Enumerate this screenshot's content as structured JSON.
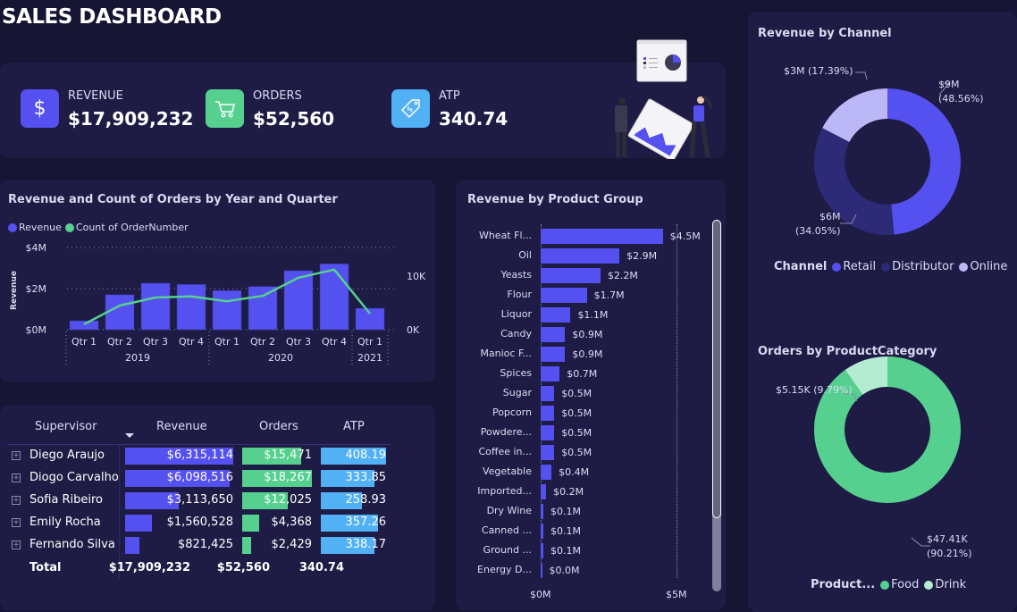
{
  "header": {
    "title": "SALES DASHBOARD"
  },
  "kpis": [
    {
      "label": "REVENUE",
      "value": "$17,909,232",
      "icon": "dollar-icon",
      "color": "#5550f0"
    },
    {
      "label": "ORDERS",
      "value": "$52,560",
      "icon": "cart-icon",
      "color": "#55d08f"
    },
    {
      "label": "ATP",
      "value": "340.74",
      "icon": "price-tag-icon",
      "color": "#52b0f5"
    }
  ],
  "colors": {
    "background": "#161533",
    "panel": "#1e1c45",
    "revenue": "#5550f0",
    "orders": "#55d08f",
    "atp": "#52b0f5",
    "distributor": "#2d2a78",
    "online": "#bcb8f7",
    "drink": "#b4ecd2"
  },
  "combo_chart": {
    "title": "Revenue and Count of Orders by Year and Quarter",
    "legend": [
      "Revenue",
      "Count of OrderNumber"
    ],
    "y_left_label": "Revenue",
    "y_left_ticks": [
      "$0M",
      "$2M",
      "$4M"
    ],
    "y_right_ticks": [
      "0K",
      "10K"
    ],
    "quarters": [
      "Qtr 1",
      "Qtr 2",
      "Qtr 3",
      "Qtr 4",
      "Qtr 1",
      "Qtr 2",
      "Qtr 3",
      "Qtr 4",
      "Qtr 1"
    ],
    "years": [
      {
        "label": "2019",
        "span": 4
      },
      {
        "label": "2020",
        "span": 4
      },
      {
        "label": "2021",
        "span": 1
      }
    ]
  },
  "table": {
    "headers": [
      "Supervisor",
      "Revenue",
      "Orders",
      "ATP"
    ],
    "rows": [
      {
        "name": "Diego Araujo",
        "revenue": "$6,315,114",
        "orders": "$15,471",
        "atp": "408.19",
        "revenue_v": 6315114,
        "orders_v": 15471,
        "atp_v": 408.19
      },
      {
        "name": "Diogo Carvalho",
        "revenue": "$6,098,516",
        "orders": "$18,267",
        "atp": "333.85",
        "revenue_v": 6098516,
        "orders_v": 18267,
        "atp_v": 333.85
      },
      {
        "name": "Sofia Ribeiro",
        "revenue": "$3,113,650",
        "orders": "$12,025",
        "atp": "258.93",
        "revenue_v": 3113650,
        "orders_v": 12025,
        "atp_v": 258.93
      },
      {
        "name": "Emily Rocha",
        "revenue": "$1,560,528",
        "orders": "$4,368",
        "atp": "357.26",
        "revenue_v": 1560528,
        "orders_v": 4368,
        "atp_v": 357.26
      },
      {
        "name": "Fernando Silva",
        "revenue": "$821,425",
        "orders": "$2,429",
        "atp": "338.17",
        "revenue_v": 821425,
        "orders_v": 2429,
        "atp_v": 338.17
      }
    ],
    "total": {
      "label": "Total",
      "revenue": "$17,909,232",
      "orders": "$52,560",
      "atp": "340.74"
    }
  },
  "product_group": {
    "title": "Revenue by Product Group",
    "x_ticks": [
      "$0M",
      "$5M"
    ]
  },
  "channel": {
    "title": "Revenue by Channel",
    "legend_title": "Channel",
    "labels": [
      {
        "line1": "$9M",
        "line2": "(48.56%)"
      },
      {
        "line1": "$6M",
        "line2": "(34.05%)"
      },
      {
        "line1": "$3M (17.39%)",
        "line2": ""
      }
    ]
  },
  "category": {
    "title": "Orders by ProductCategory",
    "legend_title": "Product...",
    "labels": [
      {
        "line1": "$47.41K",
        "line2": "(90.21%)"
      },
      {
        "line1": "$5.15K (9.79%)",
        "line2": ""
      }
    ]
  },
  "chart_data": [
    {
      "type": "bar",
      "title": "Revenue and Count of Orders by Year and Quarter",
      "categories": [
        "2019 Qtr 1",
        "2019 Qtr 2",
        "2019 Qtr 3",
        "2019 Qtr 4",
        "2020 Qtr 1",
        "2020 Qtr 2",
        "2020 Qtr 3",
        "2020 Qtr 4",
        "2021 Qtr 1"
      ],
      "series": [
        {
          "name": "Revenue",
          "type": "bar",
          "axis": "left",
          "values": [
            0.43,
            1.7,
            2.26,
            2.2,
            1.9,
            2.1,
            2.87,
            3.2,
            1.04
          ],
          "unit": "$M"
        },
        {
          "name": "Count of OrderNumber",
          "type": "line",
          "axis": "right",
          "values": [
            1.0,
            4.5,
            6.0,
            6.2,
            5.3,
            6.3,
            9.7,
            11.2,
            3.0
          ],
          "unit": "K"
        }
      ],
      "ylabel": "Revenue",
      "ylim": [
        0,
        4
      ],
      "y2lim": [
        0,
        13
      ],
      "grid": true,
      "legend": "top-left"
    },
    {
      "type": "bar",
      "orientation": "horizontal",
      "title": "Revenue by Product Group",
      "categories": [
        "Wheat Fl...",
        "Oil",
        "Yeasts",
        "Flour",
        "Liquor",
        "Candy",
        "Manioc F...",
        "Spices",
        "Sugar",
        "Popcorn",
        "Powdere...",
        "Coffee in...",
        "Vegetable",
        "Imported...",
        "Dry Wine",
        "Canned ...",
        "Ground ...",
        "Energy D..."
      ],
      "values": [
        4.5,
        2.9,
        2.2,
        1.7,
        1.1,
        0.9,
        0.9,
        0.7,
        0.5,
        0.5,
        0.5,
        0.5,
        0.4,
        0.2,
        0.1,
        0.1,
        0.1,
        0.0
      ],
      "data_labels": [
        "$4.5M",
        "$2.9M",
        "$2.2M",
        "$1.7M",
        "$1.1M",
        "$0.9M",
        "$0.9M",
        "$0.7M",
        "$0.5M",
        "$0.5M",
        "$0.5M",
        "$0.5M",
        "$0.4M",
        "$0.2M",
        "$0.1M",
        "$0.1M",
        "$0.1M",
        "$0.0M"
      ],
      "xlim": [
        0,
        5
      ],
      "unit": "$M"
    },
    {
      "type": "pie",
      "donut": true,
      "title": "Revenue by Channel",
      "categories": [
        "Retail",
        "Distributor",
        "Online"
      ],
      "values": [
        48.56,
        34.05,
        17.39
      ],
      "data_labels": [
        "$9M (48.56%)",
        "$6M (34.05%)",
        "$3M (17.39%)"
      ],
      "legend": "bottom"
    },
    {
      "type": "pie",
      "donut": true,
      "title": "Orders by ProductCategory",
      "categories": [
        "Food",
        "Drink"
      ],
      "values": [
        90.21,
        9.79
      ],
      "data_labels": [
        "$47.41K (90.21%)",
        "$5.15K (9.79%)"
      ],
      "legend": "bottom"
    }
  ]
}
